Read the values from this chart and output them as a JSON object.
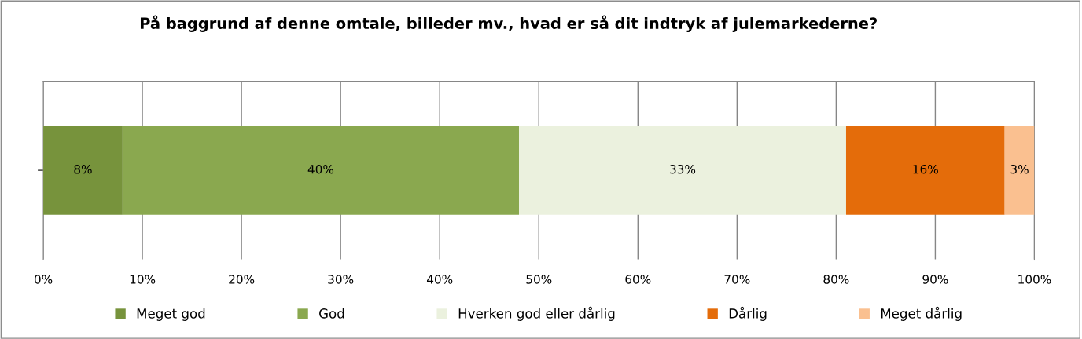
{
  "chart_data": {
    "type": "bar",
    "orientation": "horizontal",
    "stacked": true,
    "title": "På baggrund af denne omtale, billeder mv., hvad er så dit indtryk af julemarkederne?",
    "categories": [
      null
    ],
    "series": [
      {
        "name": "Meget god",
        "color": "#77933c",
        "values": [
          8
        ],
        "value_labels": [
          "8%"
        ]
      },
      {
        "name": "God",
        "color": "#8aa84f",
        "values": [
          40
        ],
        "value_labels": [
          "40%"
        ]
      },
      {
        "name": "Hverken god eller dårlig",
        "color": "#ebf1de",
        "values": [
          33
        ],
        "value_labels": [
          "33%"
        ]
      },
      {
        "name": "Dårlig",
        "color": "#e46c0a",
        "values": [
          16
        ],
        "value_labels": [
          "16%"
        ]
      },
      {
        "name": "Meget dårlig",
        "color": "#fac090",
        "values": [
          3
        ],
        "value_labels": [
          "3%"
        ]
      }
    ],
    "xlim": [
      0,
      100
    ],
    "xticks": [
      {
        "value": 0,
        "label": "0%"
      },
      {
        "value": 10,
        "label": "10%"
      },
      {
        "value": 20,
        "label": "20%"
      },
      {
        "value": 30,
        "label": "30%"
      },
      {
        "value": 40,
        "label": "40%"
      },
      {
        "value": 50,
        "label": "50%"
      },
      {
        "value": 60,
        "label": "60%"
      },
      {
        "value": 70,
        "label": "70%"
      },
      {
        "value": 80,
        "label": "80%"
      },
      {
        "value": 90,
        "label": "90%"
      },
      {
        "value": 100,
        "label": "100%"
      }
    ],
    "grid": "x",
    "legend": "bottom"
  }
}
